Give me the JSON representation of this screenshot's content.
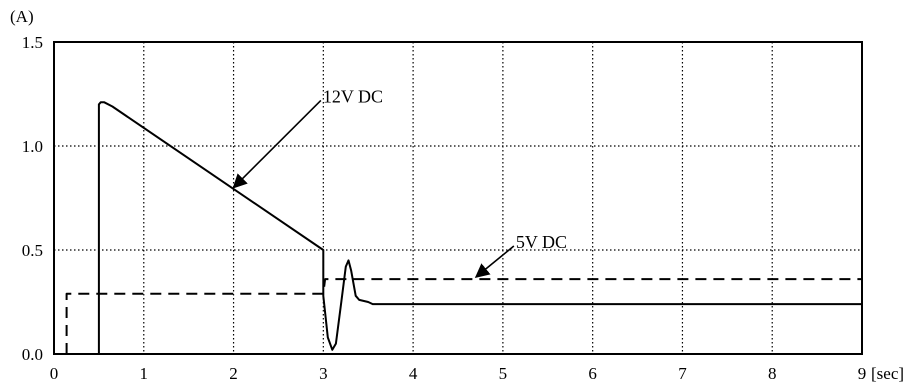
{
  "chart_data": {
    "type": "line",
    "title": "",
    "xlabel": "",
    "ylabel": "",
    "y_unit": "(A)",
    "x_unit": "[sec]",
    "xlim": [
      0,
      9
    ],
    "ylim": [
      0,
      1.5
    ],
    "x_ticks": [
      "0",
      "1",
      "2",
      "3",
      "4",
      "5",
      "6",
      "7",
      "8",
      "9"
    ],
    "y_ticks": [
      "0.0",
      "0.5",
      "1.0",
      "1.5"
    ],
    "grid": "dotted",
    "series": [
      {
        "name": "12V DC",
        "style": "solid",
        "points": [
          [
            0.5,
            0.0
          ],
          [
            0.5,
            1.2
          ],
          [
            0.52,
            1.21
          ],
          [
            0.56,
            1.21
          ],
          [
            0.65,
            1.19
          ],
          [
            3.0,
            0.5
          ],
          [
            3.0,
            0.28
          ],
          [
            3.05,
            0.08
          ],
          [
            3.1,
            0.02
          ],
          [
            3.14,
            0.05
          ],
          [
            3.2,
            0.25
          ],
          [
            3.25,
            0.42
          ],
          [
            3.28,
            0.45
          ],
          [
            3.31,
            0.4
          ],
          [
            3.36,
            0.28
          ],
          [
            3.4,
            0.26
          ],
          [
            3.5,
            0.25
          ],
          [
            3.55,
            0.24
          ],
          [
            9.0,
            0.24
          ]
        ]
      },
      {
        "name": "5V DC",
        "style": "dashed",
        "points": [
          [
            0.14,
            0.0
          ],
          [
            0.14,
            0.29
          ],
          [
            3.0,
            0.29
          ],
          [
            3.02,
            0.36
          ],
          [
            9.0,
            0.36
          ]
        ]
      }
    ],
    "annotations": [
      {
        "text": "12V DC",
        "target": [
          2.0,
          0.8
        ],
        "label_at": [
          2.95,
          1.2
        ]
      },
      {
        "text": "5V DC",
        "target": [
          4.7,
          0.37
        ],
        "label_at": [
          5.1,
          0.5
        ]
      }
    ]
  }
}
